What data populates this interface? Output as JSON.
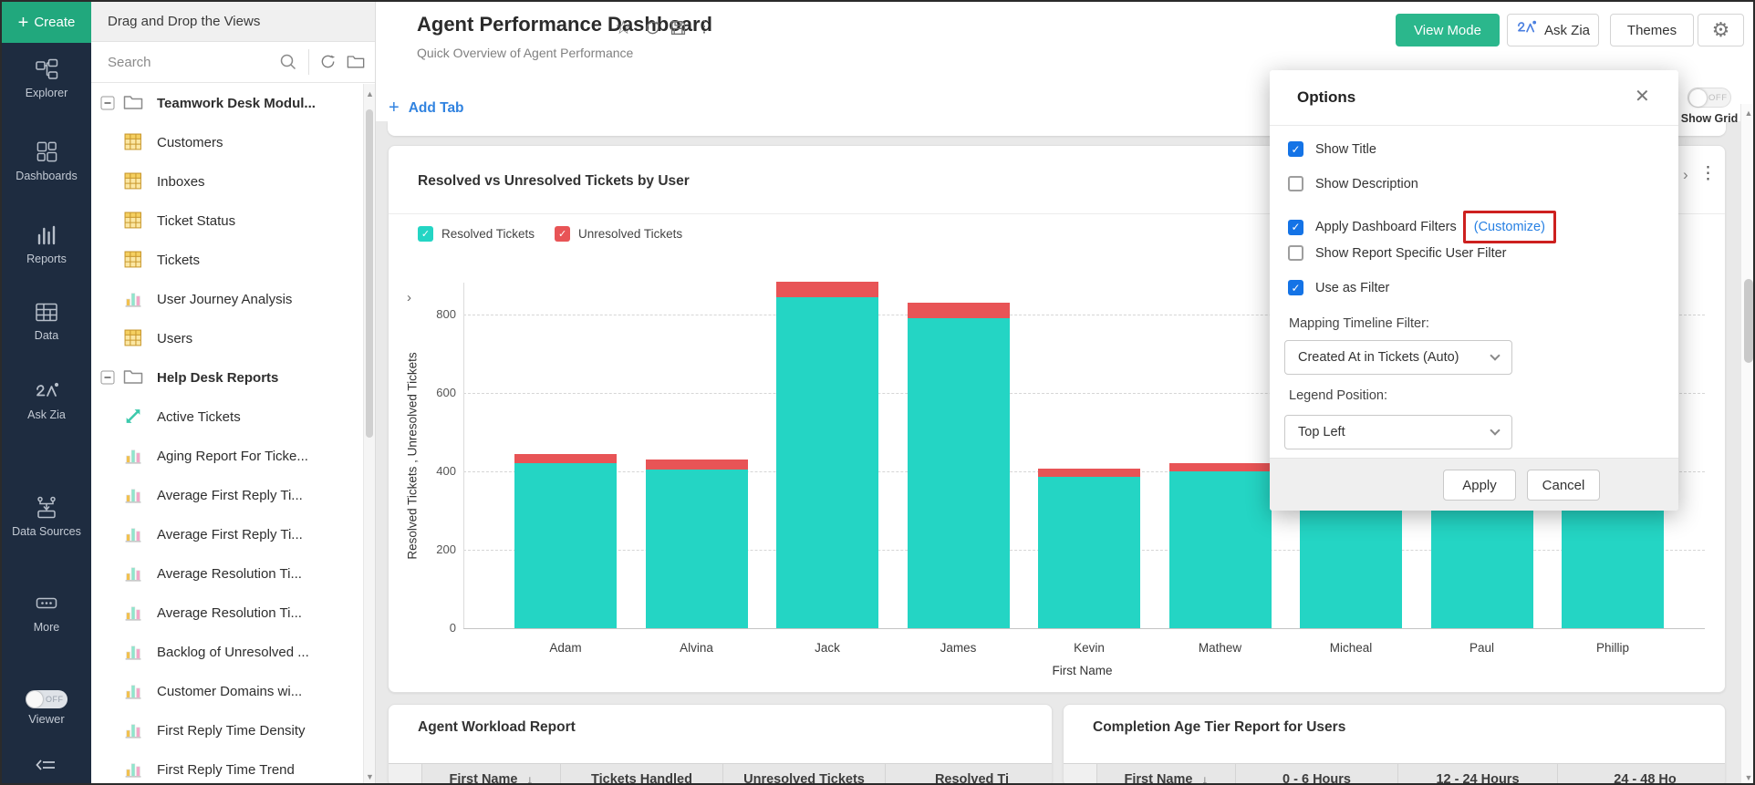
{
  "sidebar": {
    "create_label": "Create",
    "items": [
      {
        "label": "Explorer",
        "icon": "explorer"
      },
      {
        "label": "Dashboards",
        "icon": "dashboards"
      },
      {
        "label": "Reports",
        "icon": "reports"
      },
      {
        "label": "Data",
        "icon": "data"
      },
      {
        "label": "Ask Zia",
        "icon": "zia"
      },
      {
        "label": "Data Sources",
        "icon": "data-sources"
      },
      {
        "label": "More",
        "icon": "more"
      }
    ],
    "viewer": {
      "label": "Viewer",
      "state": "OFF"
    }
  },
  "views_panel": {
    "header": "Drag and Drop the Views",
    "search_placeholder": "Search",
    "tree": [
      {
        "label": "Teamwork Desk Modul...",
        "icon": "folder",
        "group": true
      },
      {
        "label": "Customers",
        "icon": "table"
      },
      {
        "label": "Inboxes",
        "icon": "table"
      },
      {
        "label": "Ticket Status",
        "icon": "table"
      },
      {
        "label": "Tickets",
        "icon": "table"
      },
      {
        "label": "User Journey Analysis",
        "icon": "barchart"
      },
      {
        "label": "Users",
        "icon": "table"
      },
      {
        "label": "Help Desk Reports",
        "icon": "folder",
        "group": true
      },
      {
        "label": "Active Tickets",
        "icon": "trend"
      },
      {
        "label": "Aging Report For Ticke...",
        "icon": "barchart"
      },
      {
        "label": "Average First Reply Ti...",
        "icon": "barchart"
      },
      {
        "label": "Average First Reply Ti...",
        "icon": "barchart"
      },
      {
        "label": "Average Resolution Ti...",
        "icon": "barchart"
      },
      {
        "label": "Average Resolution Ti...",
        "icon": "barchart"
      },
      {
        "label": "Backlog of Unresolved ...",
        "icon": "barchart"
      },
      {
        "label": "Customer Domains wi...",
        "icon": "barchart"
      },
      {
        "label": "First Reply Time Density",
        "icon": "barchart"
      },
      {
        "label": "First Reply Time Trend",
        "icon": "barchart"
      }
    ]
  },
  "header": {
    "title": "Agent Performance Dashboard",
    "subtitle": "Quick Overview of Agent Performance",
    "add_tab_label": "Add Tab",
    "view_mode_label": "View Mode",
    "ask_zia_label": "Ask Zia",
    "themes_label": "Themes",
    "show_grid": {
      "label": "Show Grid",
      "state": "OFF"
    }
  },
  "chart_card": {
    "title": "Resolved vs Unresolved Tickets by User"
  },
  "chart_data": {
    "type": "bar",
    "stacked": true,
    "title": "Resolved vs Unresolved Tickets by User",
    "categories": [
      "Adam",
      "Alvina",
      "Jack",
      "James",
      "Kevin",
      "Mathew",
      "Micheal",
      "Paul",
      "Phillip"
    ],
    "series": [
      {
        "name": "Resolved Tickets",
        "color": "#24d5c4",
        "values": [
          420,
          405,
          845,
          790,
          385,
          400,
          430,
          425,
          435
        ]
      },
      {
        "name": "Unresolved Tickets",
        "color": "#e85456",
        "values": [
          25,
          25,
          38,
          40,
          22,
          20,
          20,
          20,
          20
        ]
      }
    ],
    "xlabel": "First Name",
    "ylabel": "Resolved Tickets , Unresolved Tickets",
    "yticks": [
      0,
      200,
      400,
      600,
      800
    ],
    "ylim": [
      0,
      930
    ],
    "grid": "dashed-horizontal",
    "legend_position": "top-left"
  },
  "options_panel": {
    "title": "Options",
    "checkboxes": [
      {
        "label": "Show Title",
        "checked": true
      },
      {
        "label": "Show Description",
        "checked": false
      },
      {
        "label": "Apply Dashboard Filters",
        "checked": true,
        "link": "(Customize)"
      },
      {
        "label": "Show Report Specific User Filter",
        "checked": false
      },
      {
        "label": "Use as Filter",
        "checked": true
      }
    ],
    "mapping_filter": {
      "label": "Mapping Timeline Filter:",
      "value": "Created At in Tickets (Auto)"
    },
    "legend_position": {
      "label": "Legend Position:",
      "value": "Top Left"
    },
    "apply_label": "Apply",
    "cancel_label": "Cancel"
  },
  "workload_card": {
    "title": "Agent Workload Report",
    "columns": [
      {
        "label": ""
      },
      {
        "label": "First Name",
        "sort": "desc"
      },
      {
        "label": "Tickets Handled"
      },
      {
        "label": "Unresolved Tickets"
      },
      {
        "label": "Resolved Ti"
      }
    ]
  },
  "completion_card": {
    "title": "Completion Age Tier Report for Users",
    "columns": [
      {
        "label": ""
      },
      {
        "label": "First Name",
        "sort": "desc"
      },
      {
        "label": "0 - 6 Hours"
      },
      {
        "label": "12 - 24 Hours"
      },
      {
        "label": "24 - 48 Ho"
      }
    ]
  },
  "colors": {
    "sidebar_bg": "#1e2c40",
    "create_green": "#21a87d",
    "view_mode_teal": "#2bb78c",
    "bar_teal": "#24d5c4",
    "bar_red": "#e85456",
    "checkbox_blue": "#1473e6",
    "link_blue": "#2780e3",
    "highlight_red": "#cd201f"
  }
}
